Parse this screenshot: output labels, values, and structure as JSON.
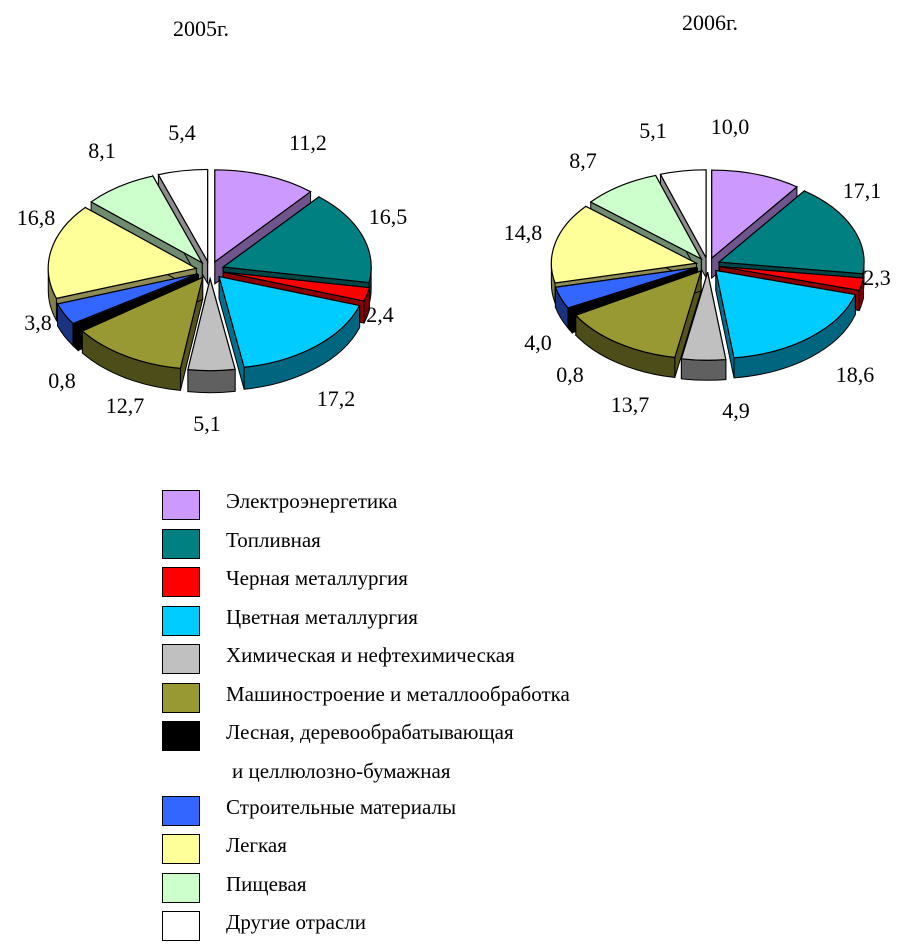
{
  "chart_data": [
    {
      "type": "pie",
      "title": "2005г.",
      "categories": [
        "Электроэнергетика",
        "Топливная",
        "Черная металлургия",
        "Цветная металлургия",
        "Химическая и нефтехимическая",
        "Машиностроение и металлообработка",
        "Лесная, деревообрабатывающая и целлюлозно-бумажная",
        "Строительные материалы",
        "Легкая",
        "Пищевая",
        "Другие отрасли"
      ],
      "values": [
        11.2,
        16.5,
        2.4,
        17.2,
        5.1,
        12.7,
        0.8,
        3.8,
        16.8,
        8.1,
        5.4
      ],
      "value_labels": [
        "11,2",
        "16,5",
        "2,4",
        "17,2",
        "5,1",
        "12,7",
        "0,8",
        "3,8",
        "16,8",
        "8,1",
        "5,4"
      ]
    },
    {
      "type": "pie",
      "title": "2006г.",
      "categories": [
        "Электроэнергетика",
        "Топливная",
        "Черная металлургия",
        "Цветная металлургия",
        "Химическая и нефтехимическая",
        "Машиностроение и металлообработка",
        "Лесная, деревообрабатывающая и целлюлозно-бумажная",
        "Строительные материалы",
        "Легкая",
        "Пищевая",
        "Другие отрасли"
      ],
      "values": [
        10.0,
        17.1,
        2.3,
        18.6,
        4.9,
        13.7,
        0.8,
        4.0,
        14.8,
        8.7,
        5.1
      ],
      "value_labels": [
        "10,0",
        "17,1",
        "2,3",
        "18,6",
        "4,9",
        "13,7",
        "0,8",
        "4,0",
        "14,8",
        "8,7",
        "5,1"
      ]
    }
  ],
  "legend": [
    {
      "name": "Электроэнергетика",
      "color": "#cc99ff"
    },
    {
      "name": "Топливная",
      "color": "#008080"
    },
    {
      "name": "Черная металлургия",
      "color": "#ff0000"
    },
    {
      "name": "Цветная металлургия",
      "color": "#00ccff"
    },
    {
      "name": "Химическая и нефтехимическая",
      "color": "#c0c0c0"
    },
    {
      "name": "Машиностроение и металлообработка",
      "color": "#999933"
    },
    {
      "name": "Лесная, деревообрабатывающая",
      "color": "#000000",
      "continuation": "и целлюлозно-бумажная"
    },
    {
      "name": "Строительные материалы",
      "color": "#3366ff"
    },
    {
      "name": "Легкая",
      "color": "#ffff99"
    },
    {
      "name": "Пищевая",
      "color": "#ccffcc"
    },
    {
      "name": "Другие отрасли",
      "color": "#ffffff"
    }
  ]
}
